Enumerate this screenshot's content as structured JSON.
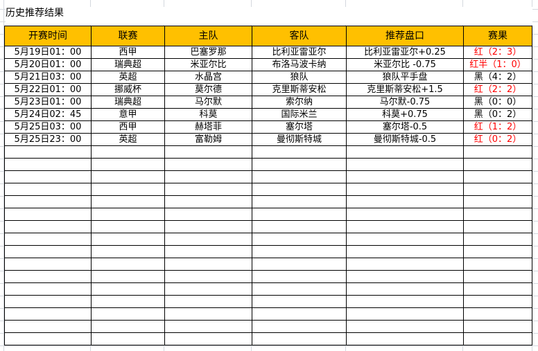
{
  "title": "历史推荐结果",
  "headers": [
    "开赛时间",
    "联赛",
    "主队",
    "客队",
    "推荐盘口",
    "赛果"
  ],
  "colors": {
    "header_bg": "#ffc000",
    "win": "#ff0000",
    "loss": "#000000"
  },
  "rows": [
    {
      "time": "5月19日01：00",
      "league": "西甲",
      "home": "巴塞罗那",
      "away": "比利亚雷亚尔",
      "pick": "比利亚雷亚尔+0.25",
      "result": "红（2：3）",
      "win": true
    },
    {
      "time": "5月20日01：00",
      "league": "瑞典超",
      "home": "米亚尔比",
      "away": "布洛马波卡纳",
      "pick": "米亚尔比 -0.75",
      "result": "红半（1：0）",
      "win": true
    },
    {
      "time": "5月21日03：00",
      "league": "英超",
      "home": "水晶宫",
      "away": "狼队",
      "pick": "狼队平手盘",
      "result": "黑（4：2）",
      "win": false
    },
    {
      "time": "5月22日01：00",
      "league": "挪威杯",
      "home": "莫尔德",
      "away": "克里斯蒂安松",
      "pick": "克里斯蒂安松+1.5",
      "result": "红（2：2）",
      "win": true
    },
    {
      "time": "5月23日01：00",
      "league": "瑞典超",
      "home": "马尔默",
      "away": "索尔纳",
      "pick": "马尔默-0.75",
      "result": "黑（0：0）",
      "win": false
    },
    {
      "time": "5月24日02：45",
      "league": "意甲",
      "home": "科莫",
      "away": "国际米兰",
      "pick": "科莫+0.75",
      "result": "黑（0：2）",
      "win": false
    },
    {
      "time": "5月25日03：00",
      "league": "西甲",
      "home": "赫塔菲",
      "away": "塞尔塔",
      "pick": "塞尔塔-0.5",
      "result": "红（1：2）",
      "win": true
    },
    {
      "time": "5月25日23：00",
      "league": "英超",
      "home": "富勒姆",
      "away": "曼彻斯特城",
      "pick": "曼彻斯特城-0.5",
      "result": "红（0：2）",
      "win": true
    }
  ]
}
